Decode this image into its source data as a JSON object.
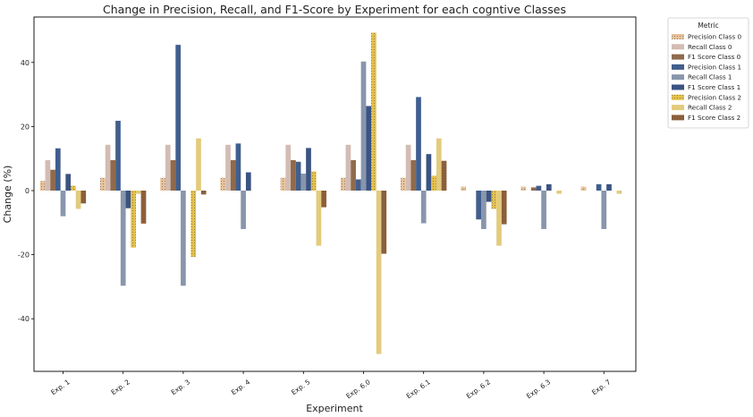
{
  "chart_data": {
    "type": "bar",
    "title": "Change in Precision, Recall, and F1-Score by Experiment for each cogntive Classes",
    "xlabel": "Experiment",
    "ylabel": "Change (%)",
    "ylim": [
      -56,
      56
    ],
    "yticks": [
      -40,
      -20,
      0,
      20,
      40
    ],
    "grid": false,
    "legend": {
      "title": "Metric",
      "placement": "outside-top-right"
    },
    "categories": [
      "Exp. 1",
      "Exp. 2",
      "Exp. 3",
      "Exp. 4",
      "Exp. 5",
      "Exp. 6.0",
      "Exp. 6.1",
      "Exp. 6.2",
      "Exp. 6.3",
      "Exp. 7"
    ],
    "series": [
      {
        "name": "Precision Class 0",
        "color": "#e9c39a",
        "hatch": true,
        "values": [
          3,
          4,
          4,
          4,
          4,
          4,
          4,
          1.2,
          1.2,
          1.2
        ]
      },
      {
        "name": "Recall Class 0",
        "color": "#d3bcb3",
        "hatch": false,
        "values": [
          9.5,
          14.3,
          14.3,
          14.3,
          14.3,
          14.3,
          14.3,
          0,
          0,
          0
        ]
      },
      {
        "name": "F1 Score Class 0",
        "color": "#8f6a4c",
        "hatch": false,
        "values": [
          6.5,
          9.5,
          9.5,
          9.5,
          9.5,
          9.5,
          9.5,
          0,
          1,
          0
        ]
      },
      {
        "name": "Precision Class 1",
        "color": "#3f5f92",
        "hatch": true,
        "values": [
          13.2,
          21.8,
          45.5,
          14.7,
          9,
          3.5,
          29.2,
          -9,
          1.5,
          2
        ]
      },
      {
        "name": "Recall Class 1",
        "color": "#8896ac",
        "hatch": false,
        "values": [
          -8,
          -29.7,
          -29.7,
          -12,
          5.3,
          40.3,
          -10.2,
          -12,
          -12,
          -12
        ]
      },
      {
        "name": "F1 Score Class 1",
        "color": "#3a5381",
        "hatch": false,
        "values": [
          5.2,
          -5.5,
          0,
          5.7,
          13.3,
          26.4,
          11.4,
          -3.5,
          2,
          2
        ]
      },
      {
        "name": "Precision Class 2",
        "color": "#e6c24b",
        "hatch": true,
        "values": [
          1.5,
          -17.8,
          -20.7,
          0,
          6,
          49.3,
          4.6,
          -5.7,
          0,
          0
        ]
      },
      {
        "name": "Recall Class 2",
        "color": "#e3cb7d",
        "hatch": false,
        "values": [
          -5.7,
          -1,
          16.3,
          0,
          -17.2,
          -51,
          16.3,
          -17.2,
          -1,
          -1
        ]
      },
      {
        "name": "F1 Score Class 2",
        "color": "#8f6039",
        "hatch": true,
        "values": [
          -4,
          -10.3,
          -1.2,
          0,
          -5.2,
          -19.7,
          9.3,
          -10.5,
          0,
          0
        ]
      }
    ]
  }
}
